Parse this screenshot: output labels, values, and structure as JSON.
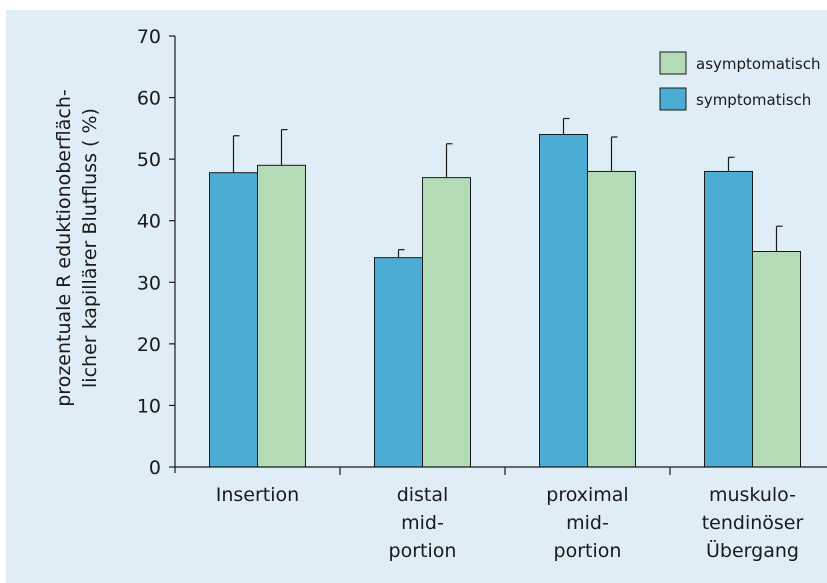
{
  "chart_data": {
    "type": "bar",
    "categories": [
      [
        "Insertion"
      ],
      [
        "distal",
        "mid-",
        "portion"
      ],
      [
        "proximal",
        "mid-",
        "portion"
      ],
      [
        "muskulo-",
        "tendinöser",
        "Übergang"
      ]
    ],
    "series": [
      {
        "name": "symptomatisch",
        "color": "#4bacd4",
        "values": [
          47.8,
          34,
          54,
          48
        ],
        "errors": [
          6,
          1.3,
          2.6,
          2.3
        ]
      },
      {
        "name": "asymptomatisch",
        "color": "#b3dcb6",
        "values": [
          49,
          47,
          48,
          35
        ],
        "errors": [
          5.8,
          5.5,
          5.6,
          4.1
        ]
      }
    ],
    "legend_order": [
      "asymptomatisch",
      "symptomatisch"
    ],
    "ylabel_lines": [
      "prozentuale R eduktionoberfläch-",
      "licher kapillärer Blutfluss ( %)"
    ],
    "ylim": [
      0,
      70
    ],
    "yticks": [
      0,
      10,
      20,
      30,
      40,
      50,
      60,
      70
    ],
    "legend_position": "top-right",
    "grid": false,
    "background_color": "#deedf6"
  }
}
